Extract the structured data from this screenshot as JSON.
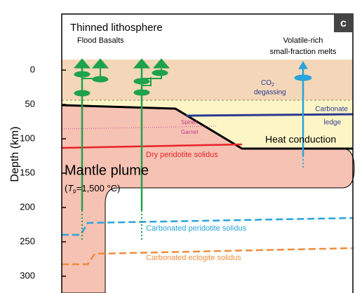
{
  "panel_label": "c",
  "header": {
    "title": "Thinned lithosphere",
    "subtitle": "Flood Basalts"
  },
  "melts_label": [
    "Volatile-rich",
    "small-fraction melts"
  ],
  "degassing": {
    "species": "CO",
    "subscript": "2",
    "text": "degassing"
  },
  "carbonate_ledge": [
    "Carbonate",
    "ledge"
  ],
  "phase_boundary": [
    "Spinel",
    "Garnet"
  ],
  "heat_conduction": "Heat conduction",
  "dry_solidus": "Dry peridotite solidus",
  "plume": {
    "title": "Mantle plume",
    "open": "(",
    "symbol": "T",
    "subscript": "p",
    "rest": "=1,500 °C)"
  },
  "carbonated_peridotite": "Carbonated peridotite solidus",
  "carbonated_eclogite": "Carbonated eclogite solidus",
  "axis": {
    "label": "Depth (km)",
    "ticks": [
      0,
      50,
      100,
      150,
      200,
      250,
      300
    ]
  }
}
